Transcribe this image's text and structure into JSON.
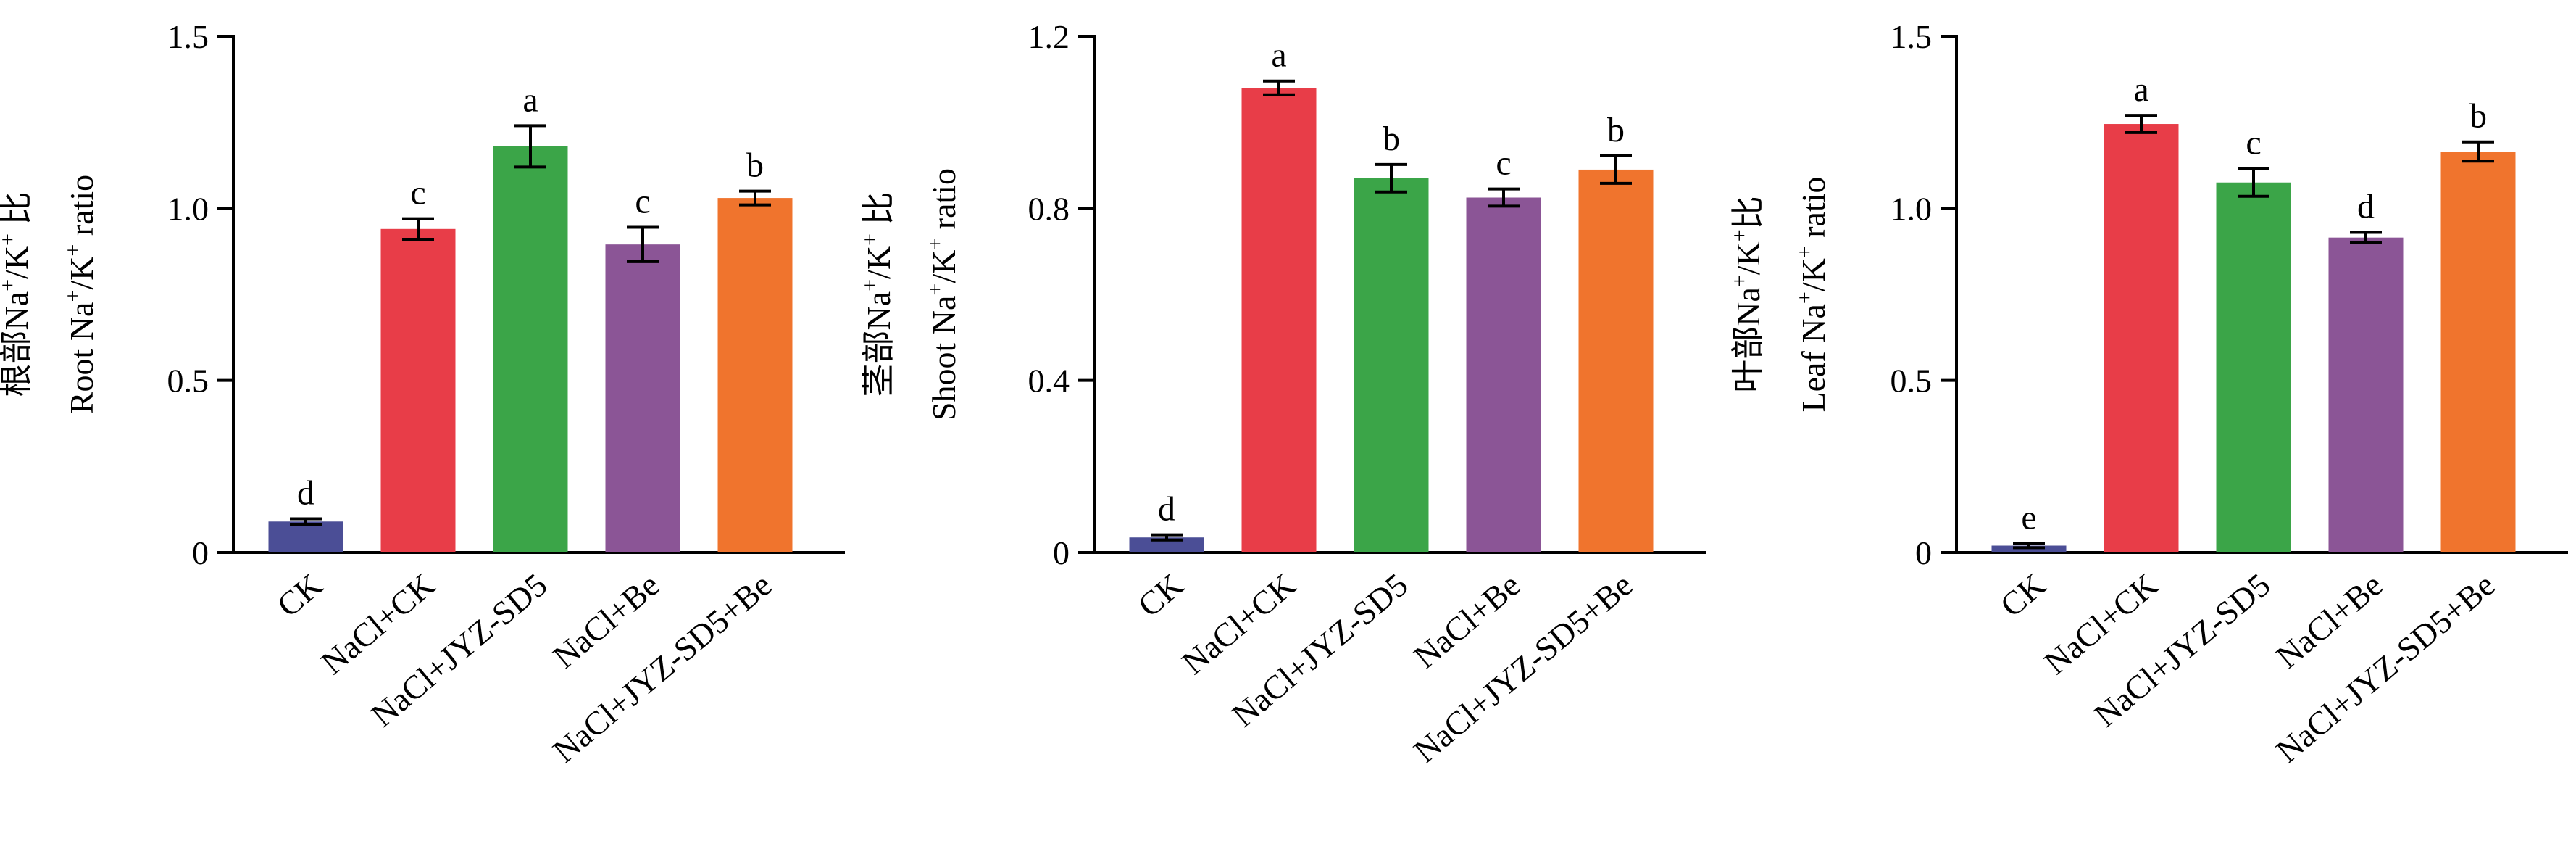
{
  "chart_data": [
    {
      "type": "bar",
      "ylabel_zh_parts": [
        "根部Na",
        "+",
        "/K",
        "+",
        " 比"
      ],
      "ylabel_en_parts": [
        "Root Na",
        "+",
        "/K",
        "+",
        " ratio"
      ],
      "categories": [
        "CK",
        "NaCl+CK",
        "NaCl+JYZ-SD5",
        "NaCl+Be",
        "NaCl+JYZ-SD5+Be"
      ],
      "values": [
        0.09,
        0.94,
        1.18,
        0.895,
        1.03
      ],
      "errors": [
        0.008,
        0.03,
        0.06,
        0.05,
        0.02
      ],
      "significance": [
        "d",
        "c",
        "a",
        "c",
        "b"
      ],
      "colors": [
        "#4b4e96",
        "#e83d48",
        "#3ba548",
        "#8b5596",
        "#f0742d"
      ],
      "ylim": [
        0,
        1.5
      ],
      "yticks": [
        0,
        0.5,
        1.0,
        1.5
      ],
      "yticklabels": [
        "0",
        "0.5",
        "1.0",
        "1.5"
      ]
    },
    {
      "type": "bar",
      "ylabel_zh_parts": [
        "茎部Na",
        "+",
        "/K",
        "+",
        " 比"
      ],
      "ylabel_en_parts": [
        "Shoot Na",
        "+",
        "/K",
        "+",
        " ratio"
      ],
      "categories": [
        "CK",
        "NaCl+CK",
        "NaCl+JYZ-SD5",
        "NaCl+Be",
        "NaCl+JYZ-SD5+Be"
      ],
      "values": [
        0.035,
        1.08,
        0.87,
        0.825,
        0.89
      ],
      "errors": [
        0.006,
        0.016,
        0.032,
        0.02,
        0.032
      ],
      "significance": [
        "d",
        "a",
        "b",
        "c",
        "b"
      ],
      "colors": [
        "#4b4e96",
        "#e83d48",
        "#3ba548",
        "#8b5596",
        "#f0742d"
      ],
      "ylim": [
        0,
        1.2
      ],
      "yticks": [
        0,
        0.4,
        0.8,
        1.2
      ],
      "yticklabels": [
        "0",
        "0.4",
        "0.8",
        "1.2"
      ]
    },
    {
      "type": "bar",
      "ylabel_zh_parts": [
        "叶部Na",
        "+",
        "/K",
        "+",
        "比"
      ],
      "ylabel_en_parts": [
        "Leaf Na",
        "+",
        "/K",
        "+",
        " ratio"
      ],
      "categories": [
        "CK",
        "NaCl+CK",
        "NaCl+JYZ-SD5",
        "NaCl+Be",
        "NaCl+JYZ-SD5+Be"
      ],
      "values": [
        0.02,
        1.245,
        1.075,
        0.915,
        1.165
      ],
      "errors": [
        0.006,
        0.025,
        0.04,
        0.015,
        0.028
      ],
      "significance": [
        "e",
        "a",
        "c",
        "d",
        "b"
      ],
      "colors": [
        "#4b4e96",
        "#e83d48",
        "#3ba548",
        "#8b5596",
        "#f0742d"
      ],
      "ylim": [
        0,
        1.5
      ],
      "yticks": [
        0,
        0.5,
        1.0,
        1.5
      ],
      "yticklabels": [
        "0",
        "0.5",
        "1.0",
        "1.5"
      ]
    }
  ]
}
